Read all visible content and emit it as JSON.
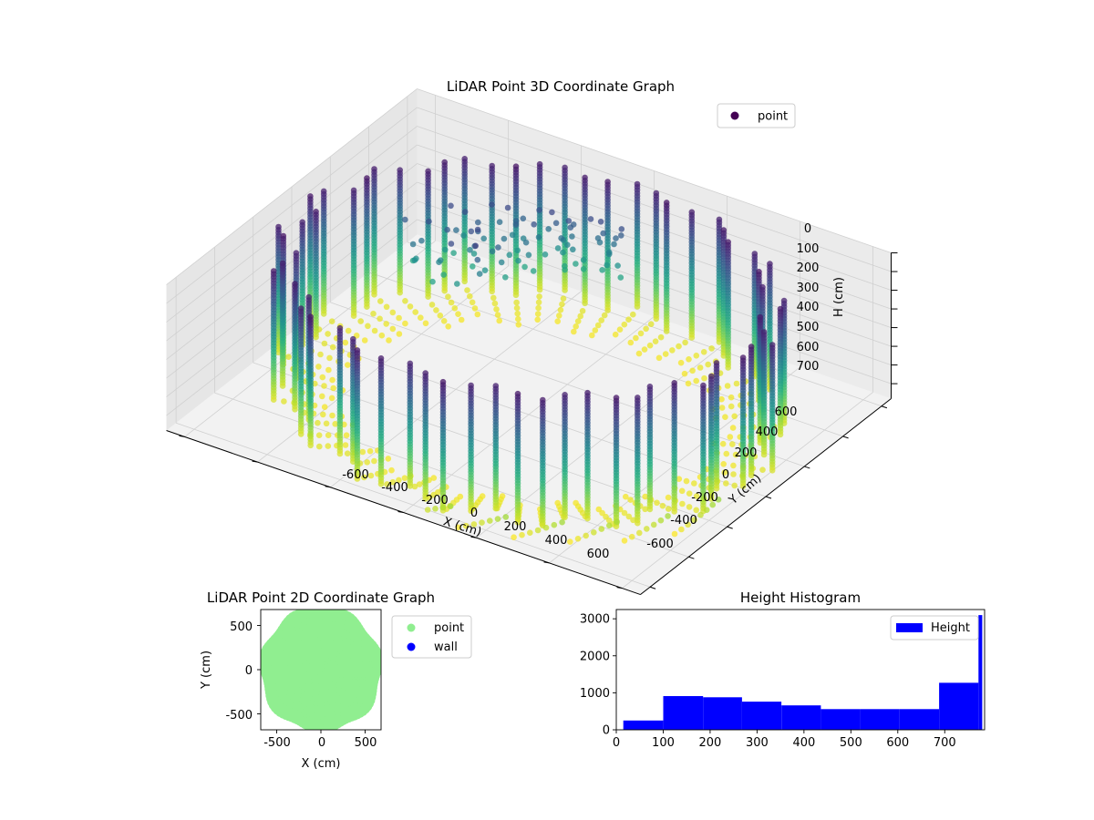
{
  "chart_data": [
    {
      "type": "scatter",
      "projection": "3d",
      "title": "LiDAR Point 3D Coordinate Graph",
      "xlabel": "X (cm)",
      "ylabel": "Y (cm)",
      "zlabel": "H (cm)",
      "xlim": [
        -650,
        650
      ],
      "ylim": [
        -650,
        650
      ],
      "zlim": [
        780,
        0
      ],
      "z_inverted": true,
      "xticks": [
        -600,
        -400,
        -200,
        0,
        200,
        400,
        600
      ],
      "yticks": [
        -600,
        -400,
        -200,
        0,
        200,
        400,
        600
      ],
      "zticks": [
        0,
        100,
        200,
        300,
        400,
        500,
        600,
        700
      ],
      "colormap": "viridis",
      "grid": true,
      "legend": {
        "position": "upper-right",
        "entries": [
          {
            "label": "point",
            "color": "#440154"
          }
        ]
      },
      "series": [
        {
          "name": "point",
          "shape": "cylindrical ring of vertical scan lines",
          "radius_approx": 620,
          "height_range": [
            0,
            780
          ]
        }
      ]
    },
    {
      "type": "scatter",
      "title": "LiDAR Point 2D Coordinate Graph",
      "xlabel": "X (cm)",
      "ylabel": "Y (cm)",
      "xlim": [
        -680,
        680
      ],
      "ylim": [
        -680,
        680
      ],
      "xticks": [
        -500,
        0,
        500
      ],
      "yticks": [
        -500,
        0,
        500
      ],
      "grid": false,
      "legend": {
        "position": "outside-right",
        "entries": [
          {
            "label": "point",
            "color": "#90ee90"
          },
          {
            "label": "wall",
            "color": "#0000ff"
          }
        ]
      },
      "series": [
        {
          "name": "point",
          "color": "#90ee90",
          "shape": "filled disc",
          "radius_approx": 640
        },
        {
          "name": "wall",
          "color": "#0000ff",
          "values": []
        }
      ]
    },
    {
      "type": "bar",
      "subtype": "histogram",
      "title": "Height Histogram",
      "xlim": [
        0,
        785
      ],
      "ylim": [
        0,
        3250
      ],
      "xticks": [
        0,
        100,
        200,
        300,
        400,
        500,
        600,
        700
      ],
      "yticks": [
        0,
        1000,
        2000,
        3000
      ],
      "color": "#0000ff",
      "legend": {
        "position": "upper-right",
        "entries": [
          {
            "label": "Height",
            "color": "#0000ff"
          }
        ]
      },
      "bins": [
        {
          "x0": 15,
          "x1": 100,
          "value": 250
        },
        {
          "x0": 100,
          "x1": 185,
          "value": 910
        },
        {
          "x0": 185,
          "x1": 268,
          "value": 880
        },
        {
          "x0": 268,
          "x1": 352,
          "value": 760
        },
        {
          "x0": 352,
          "x1": 436,
          "value": 660
        },
        {
          "x0": 436,
          "x1": 520,
          "value": 560
        },
        {
          "x0": 520,
          "x1": 604,
          "value": 560
        },
        {
          "x0": 604,
          "x1": 688,
          "value": 560
        },
        {
          "x0": 688,
          "x1": 772,
          "value": 1270
        },
        {
          "x0": 772,
          "x1": 780,
          "value": 3100
        }
      ]
    }
  ]
}
